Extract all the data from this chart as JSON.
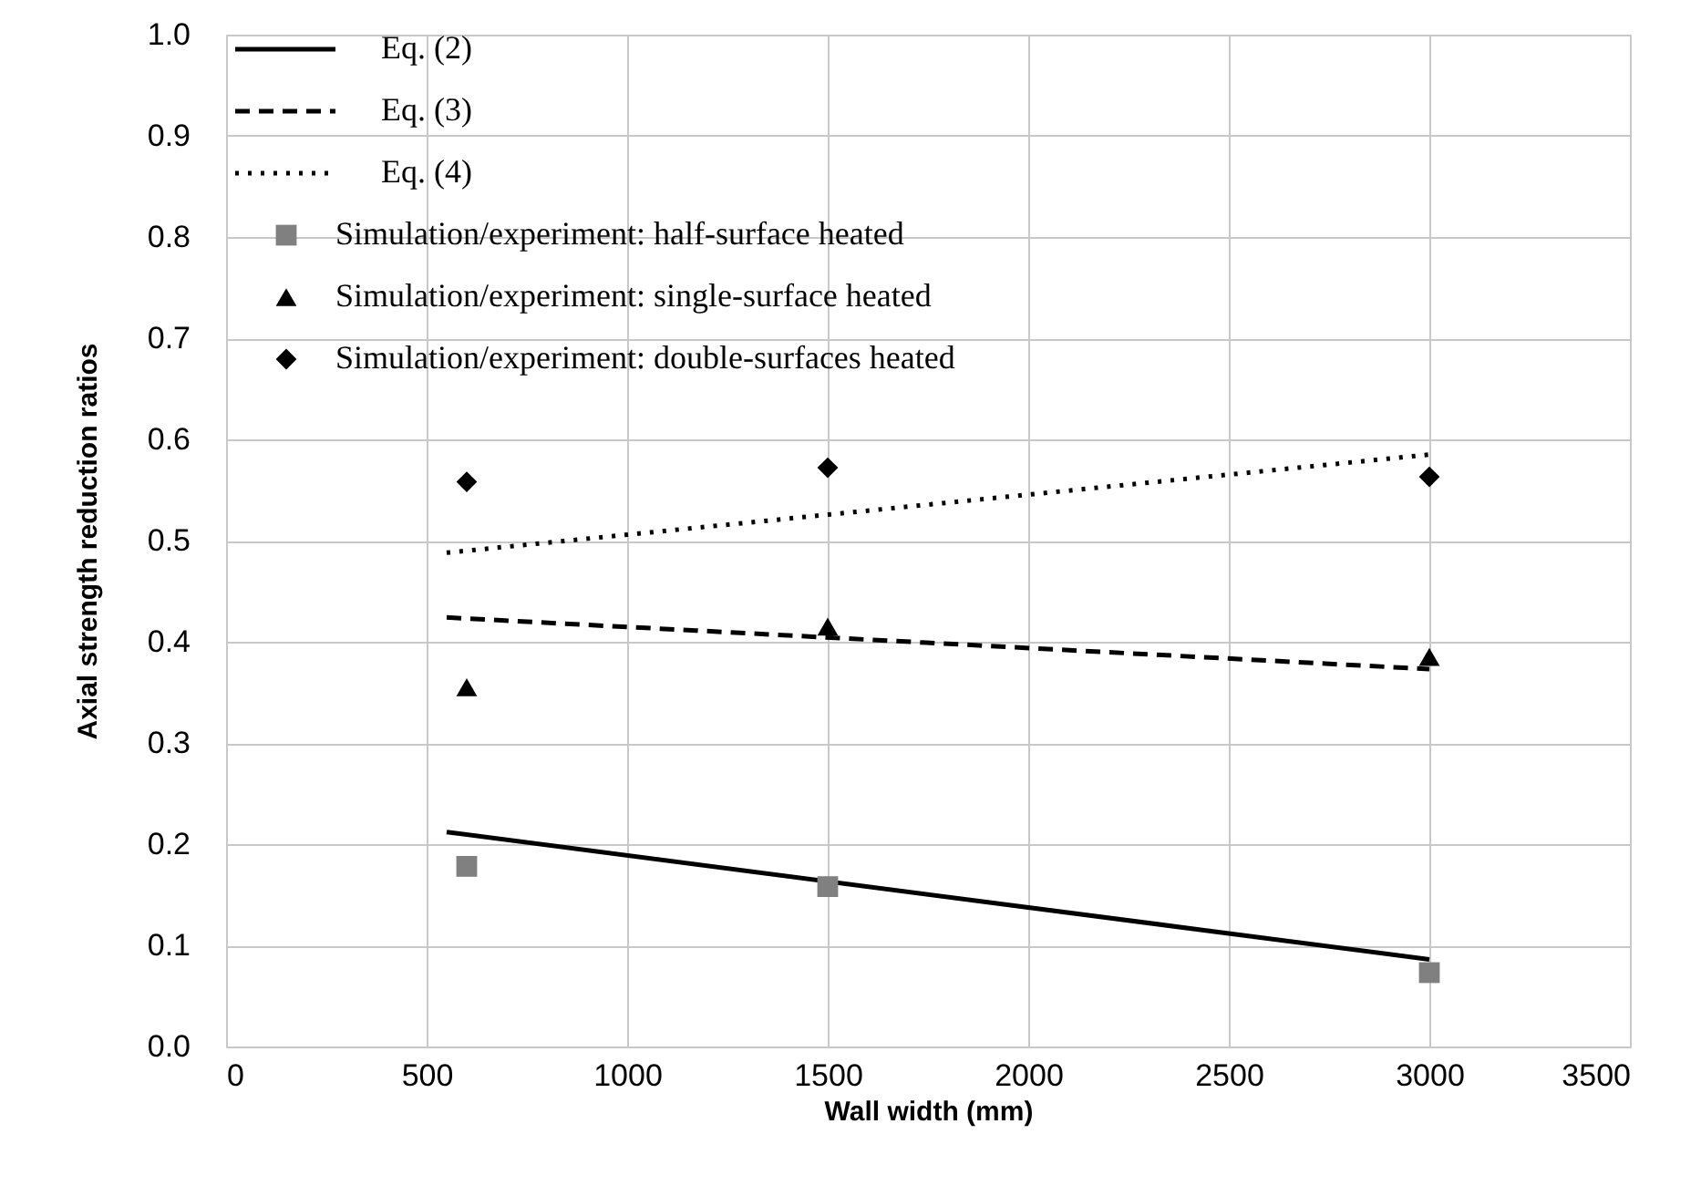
{
  "chart_data": {
    "type": "line",
    "xlabel": "Wall width (mm)",
    "ylabel": "Axial strength reduction ratios",
    "xlim": [
      0,
      3500
    ],
    "xticks": [
      0,
      500,
      1000,
      1500,
      2000,
      2500,
      3000,
      3500
    ],
    "ylim": [
      0,
      1
    ],
    "yticks": [
      {
        "value": 0,
        "label": "0.0"
      },
      0.1,
      0.2,
      0.3,
      0.4,
      0.5,
      0.6,
      0.7,
      0.8,
      0.9,
      {
        "value": 1,
        "label": "1.0"
      }
    ],
    "grid": true,
    "legend": "top left",
    "series": [
      {
        "name": "Eq. (2)",
        "line_style": "solid",
        "marker": "none",
        "color": "#000000",
        "x": [
          550,
          3000
        ],
        "values": [
          0.212,
          0.086
        ]
      },
      {
        "name": "Eq. (3)",
        "line_style": "dashed",
        "marker": "none",
        "color": "#000000",
        "x": [
          550,
          3000
        ],
        "values": [
          0.424,
          0.373
        ]
      },
      {
        "name": "Eq. (4)",
        "line_style": "dotted",
        "marker": "none",
        "color": "#000000",
        "x": [
          550,
          3000
        ],
        "values": [
          0.488,
          0.585
        ]
      },
      {
        "name": "Simulation/experiment: half-surface heated",
        "type": "scatter",
        "marker": "square",
        "color": "#808080",
        "x": [
          600,
          1500,
          3000
        ],
        "values": [
          0.178,
          0.158,
          0.073
        ]
      },
      {
        "name": "Simulation/experiment: single-surface heated",
        "type": "scatter",
        "marker": "triangle",
        "color": "#000000",
        "x": [
          600,
          1500,
          3000
        ],
        "values": [
          0.355,
          0.415,
          0.385
        ]
      },
      {
        "name": "Simulation/experiment: double-surfaces heated",
        "type": "scatter",
        "marker": "diamond",
        "color": "#000000",
        "x": [
          600,
          1500,
          3000
        ],
        "values": [
          0.558,
          0.572,
          0.563
        ]
      }
    ]
  }
}
